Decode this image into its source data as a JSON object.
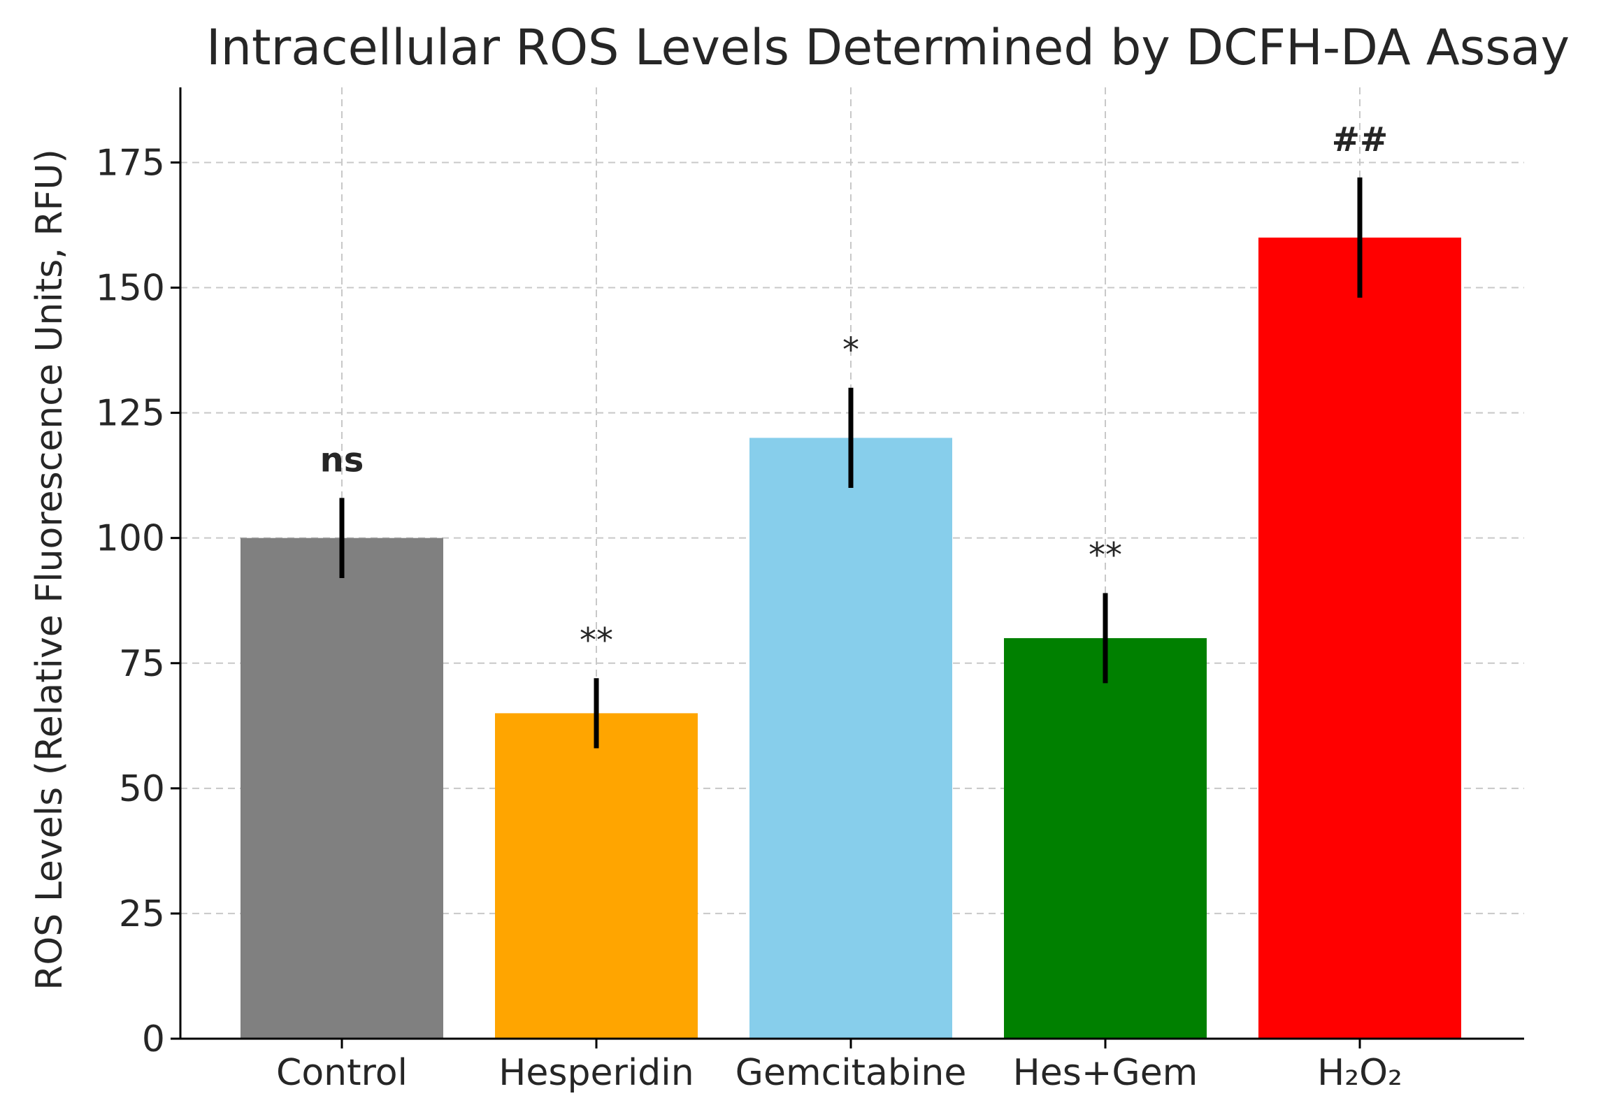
{
  "chart_data": {
    "type": "bar",
    "title": "Intracellular ROS Levels Determined by DCFH-DA Assay",
    "xlabel": "",
    "ylabel": "ROS Levels (Relative Fluorescence Units, RFU)",
    "categories": [
      "Control",
      "Hesperidin",
      "Gemcitabine",
      "Hes+Gem",
      "H₂O₂"
    ],
    "values": [
      100,
      65,
      120,
      80,
      160
    ],
    "errors": [
      8,
      7,
      10,
      9,
      12
    ],
    "colors": [
      "#808080",
      "#FFA500",
      "#87CEEB",
      "#008000",
      "#FF0000"
    ],
    "significance": [
      "ns",
      "**",
      "*",
      "**",
      "##"
    ],
    "significance_bold": [
      true,
      false,
      false,
      false,
      true
    ],
    "ylim": [
      0,
      190
    ],
    "yticks": [
      0,
      25,
      50,
      75,
      100,
      125,
      150,
      175
    ],
    "grid": true
  }
}
